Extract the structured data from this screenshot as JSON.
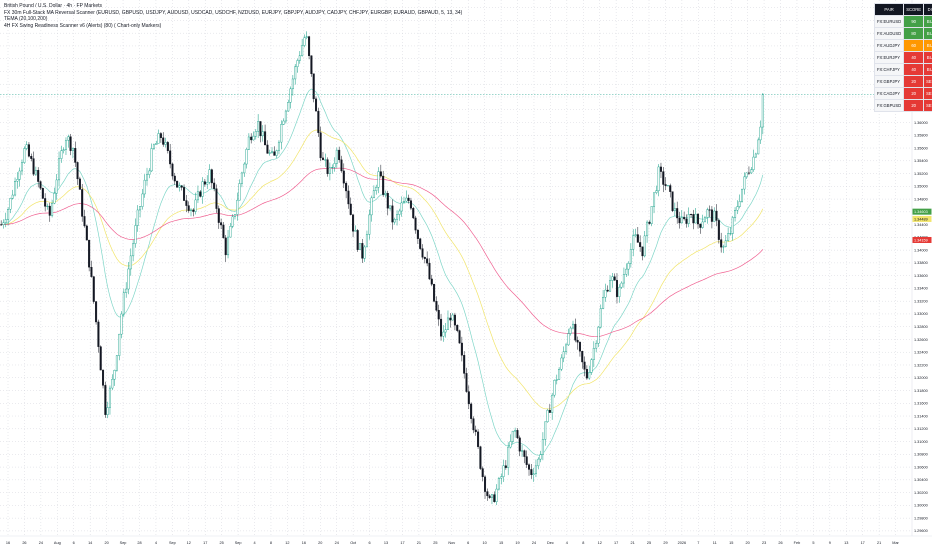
{
  "legend": {
    "title": "British Pound / U.S. Dollar · 4h · FP Markets",
    "line2": "FX 30m Full-Stack MA Reversal Scanner (EURUSD, GBPUSD, USDJPY, AUDUSD, USDCAD, USDCHF, NZDUSD, EURJPY, GBPJPY, AUDJPY, CADJPY, CHFJPY, EURGBP, EURAUD, GBPAUD, 5, 13, 34)",
    "line3": "TEMA (20,100,200)",
    "line4": "4H FX Swing Readiness Scanner v6 (Alerts) (80) ( Chart-only Markers)"
  },
  "scanner": {
    "headers": [
      "PAIR",
      "SCORE",
      "DIR"
    ],
    "rows": [
      {
        "pair": "FX:EURUSD",
        "score": "90",
        "dir": "BUY",
        "color": "#43a047"
      },
      {
        "pair": "FX:AUDUSD",
        "score": "80",
        "dir": "BUY",
        "color": "#43a047"
      },
      {
        "pair": "FX:AUDJPY",
        "score": "60",
        "dir": "BUY",
        "color": "#ff9800"
      },
      {
        "pair": "FX:EURJPY",
        "score": "40",
        "dir": "BUY",
        "color": "#e53935"
      },
      {
        "pair": "FX:CHFJPY",
        "score": "40",
        "dir": "BUY",
        "color": "#e53935"
      },
      {
        "pair": "FX:GBPJPY",
        "score": "20",
        "dir": "SELL",
        "color": "#e53935"
      },
      {
        "pair": "FX:CADJPY",
        "score": "20",
        "dir": "SELL",
        "color": "#e53935"
      },
      {
        "pair": "FX:GBPUSD",
        "score": "20",
        "dir": "SELL",
        "color": "#e53935"
      }
    ]
  },
  "colors": {
    "up": "#089981",
    "down": "#131722",
    "tema_fast": "#7fd6c8",
    "tema_mid": "#f2e56b",
    "tema_slow": "#f06292",
    "current_price": "#089981",
    "grid": "#c9ccd4"
  },
  "chart_data": {
    "type": "candlestick",
    "symbol": "GBPUSD",
    "timeframe": "4h",
    "y_ticks": [
      "1.37800",
      "1.37600",
      "1.37400",
      "1.37200",
      "1.37000",
      "1.36800",
      "1.36600",
      "1.36400",
      "1.36200",
      "1.36000",
      "1.35800",
      "1.35600",
      "1.35400",
      "1.35200",
      "1.35000",
      "1.34800",
      "1.34600",
      "1.34400",
      "1.34200",
      "1.34000",
      "1.33800",
      "1.33600",
      "1.33400",
      "1.33200",
      "1.33000",
      "1.32800",
      "1.32600",
      "1.32400",
      "1.32200",
      "1.32000",
      "1.31800",
      "1.31600",
      "1.31400",
      "1.31200",
      "1.31000",
      "1.30800",
      "1.30600",
      "1.30400",
      "1.30200",
      "1.30000",
      "1.29800",
      "1.29600"
    ],
    "ylim": [
      1.2952,
      1.3792
    ],
    "x_ticks": [
      "16",
      "26",
      "24",
      "Aug",
      "6",
      "14",
      "20",
      "Sep",
      "28",
      "4",
      "Sep",
      "12",
      "17",
      "25",
      "Sep",
      "4",
      "8",
      "12",
      "16",
      "20",
      "24",
      "Oct",
      "6",
      "13",
      "17",
      "21",
      "25",
      "Nov",
      "6",
      "10",
      "15",
      "19",
      "24",
      "Dec",
      "4",
      "8",
      "12",
      "17",
      "21",
      "25",
      "29",
      "2026",
      "7",
      "11",
      "15",
      "20",
      "23",
      "26",
      "Feb",
      "5",
      "9",
      "13",
      "17",
      "21",
      "Mar"
    ],
    "price_labels": [
      {
        "text": "1.36438",
        "value": 1.36438,
        "color": "#089981"
      },
      {
        "text": "1.34603",
        "value": 1.34603,
        "color": "#43a047"
      },
      {
        "text": "1.34489",
        "value": 1.34489,
        "color": "#f2e56b"
      },
      {
        "text": "1.34159",
        "value": 1.34159,
        "color": "#e53935"
      }
    ],
    "series": [
      {
        "name": "GBPUSD",
        "description": "close path (approx.)",
        "close": [
          1.344,
          1.347,
          1.352,
          1.356,
          1.353,
          1.349,
          1.345,
          1.352,
          1.358,
          1.356,
          1.347,
          1.338,
          1.327,
          1.315,
          1.32,
          1.33,
          1.338,
          1.345,
          1.351,
          1.356,
          1.358,
          1.354,
          1.35,
          1.348,
          1.346,
          1.35,
          1.352,
          1.346,
          1.34,
          1.345,
          1.352,
          1.358,
          1.36,
          1.356,
          1.354,
          1.36,
          1.365,
          1.37,
          1.374,
          1.364,
          1.354,
          1.352,
          1.356,
          1.35,
          1.343,
          1.339,
          1.346,
          1.352,
          1.348,
          1.344,
          1.347,
          1.348,
          1.342,
          1.338,
          1.332,
          1.326,
          1.33,
          1.326,
          1.319,
          1.312,
          1.305,
          1.3,
          1.303,
          1.307,
          1.312,
          1.308,
          1.305,
          1.307,
          1.313,
          1.319,
          1.323,
          1.329,
          1.324,
          1.32,
          1.325,
          1.332,
          1.336,
          1.333,
          1.338,
          1.342,
          1.34,
          1.346,
          1.352,
          1.35,
          1.346,
          1.344,
          1.346,
          1.344,
          1.346,
          1.345,
          1.34,
          1.343,
          1.348,
          1.352,
          1.355,
          1.362
        ]
      }
    ]
  }
}
